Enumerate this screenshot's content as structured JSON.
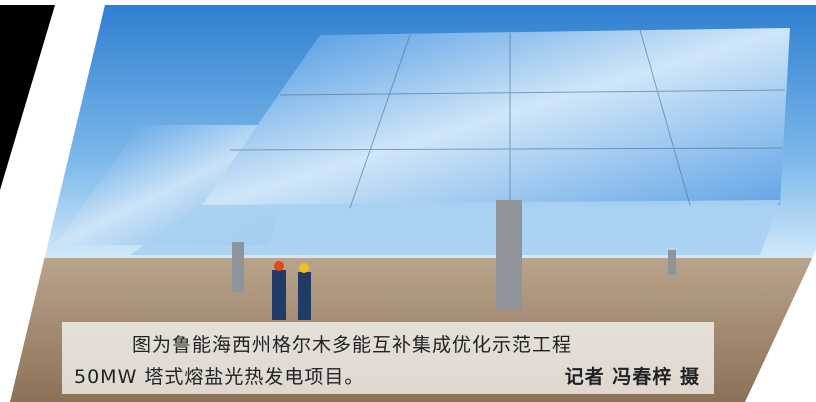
{
  "caption": {
    "line1": "图为鲁能海西州格尔木多能互补集成优化示范工程",
    "line2": "50MW 塔式熔盐光热发电项目。",
    "credit": "记者 冯春梓 摄"
  }
}
